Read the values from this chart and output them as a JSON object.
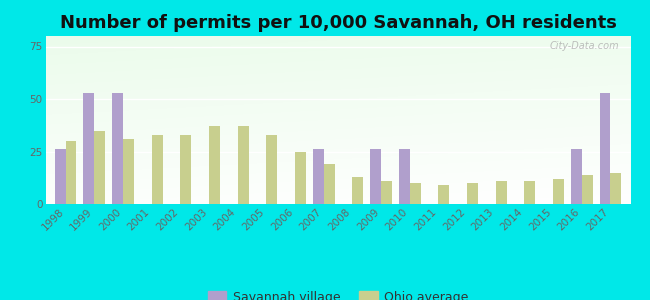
{
  "title": "Number of permits per 10,000 Savannah, OH residents",
  "years": [
    1998,
    1999,
    2000,
    2001,
    2002,
    2003,
    2004,
    2005,
    2006,
    2007,
    2008,
    2009,
    2010,
    2011,
    2012,
    2013,
    2014,
    2015,
    2016,
    2017
  ],
  "savannah": [
    26,
    53,
    53,
    0,
    0,
    0,
    0,
    0,
    0,
    26,
    0,
    26,
    26,
    0,
    0,
    0,
    0,
    0,
    26,
    53
  ],
  "ohio": [
    30,
    35,
    31,
    33,
    33,
    37,
    37,
    33,
    25,
    19,
    13,
    11,
    10,
    9,
    10,
    11,
    11,
    12,
    14,
    15
  ],
  "savannah_color": "#b09fcc",
  "ohio_color": "#c8cf8e",
  "background_color": "#00e8e8",
  "ylim": [
    0,
    80
  ],
  "yticks": [
    0,
    25,
    50,
    75
  ],
  "title_fontsize": 13,
  "tick_fontsize": 7.5,
  "legend_fontsize": 9,
  "watermark": "City-Data.com",
  "bar_width": 0.38
}
